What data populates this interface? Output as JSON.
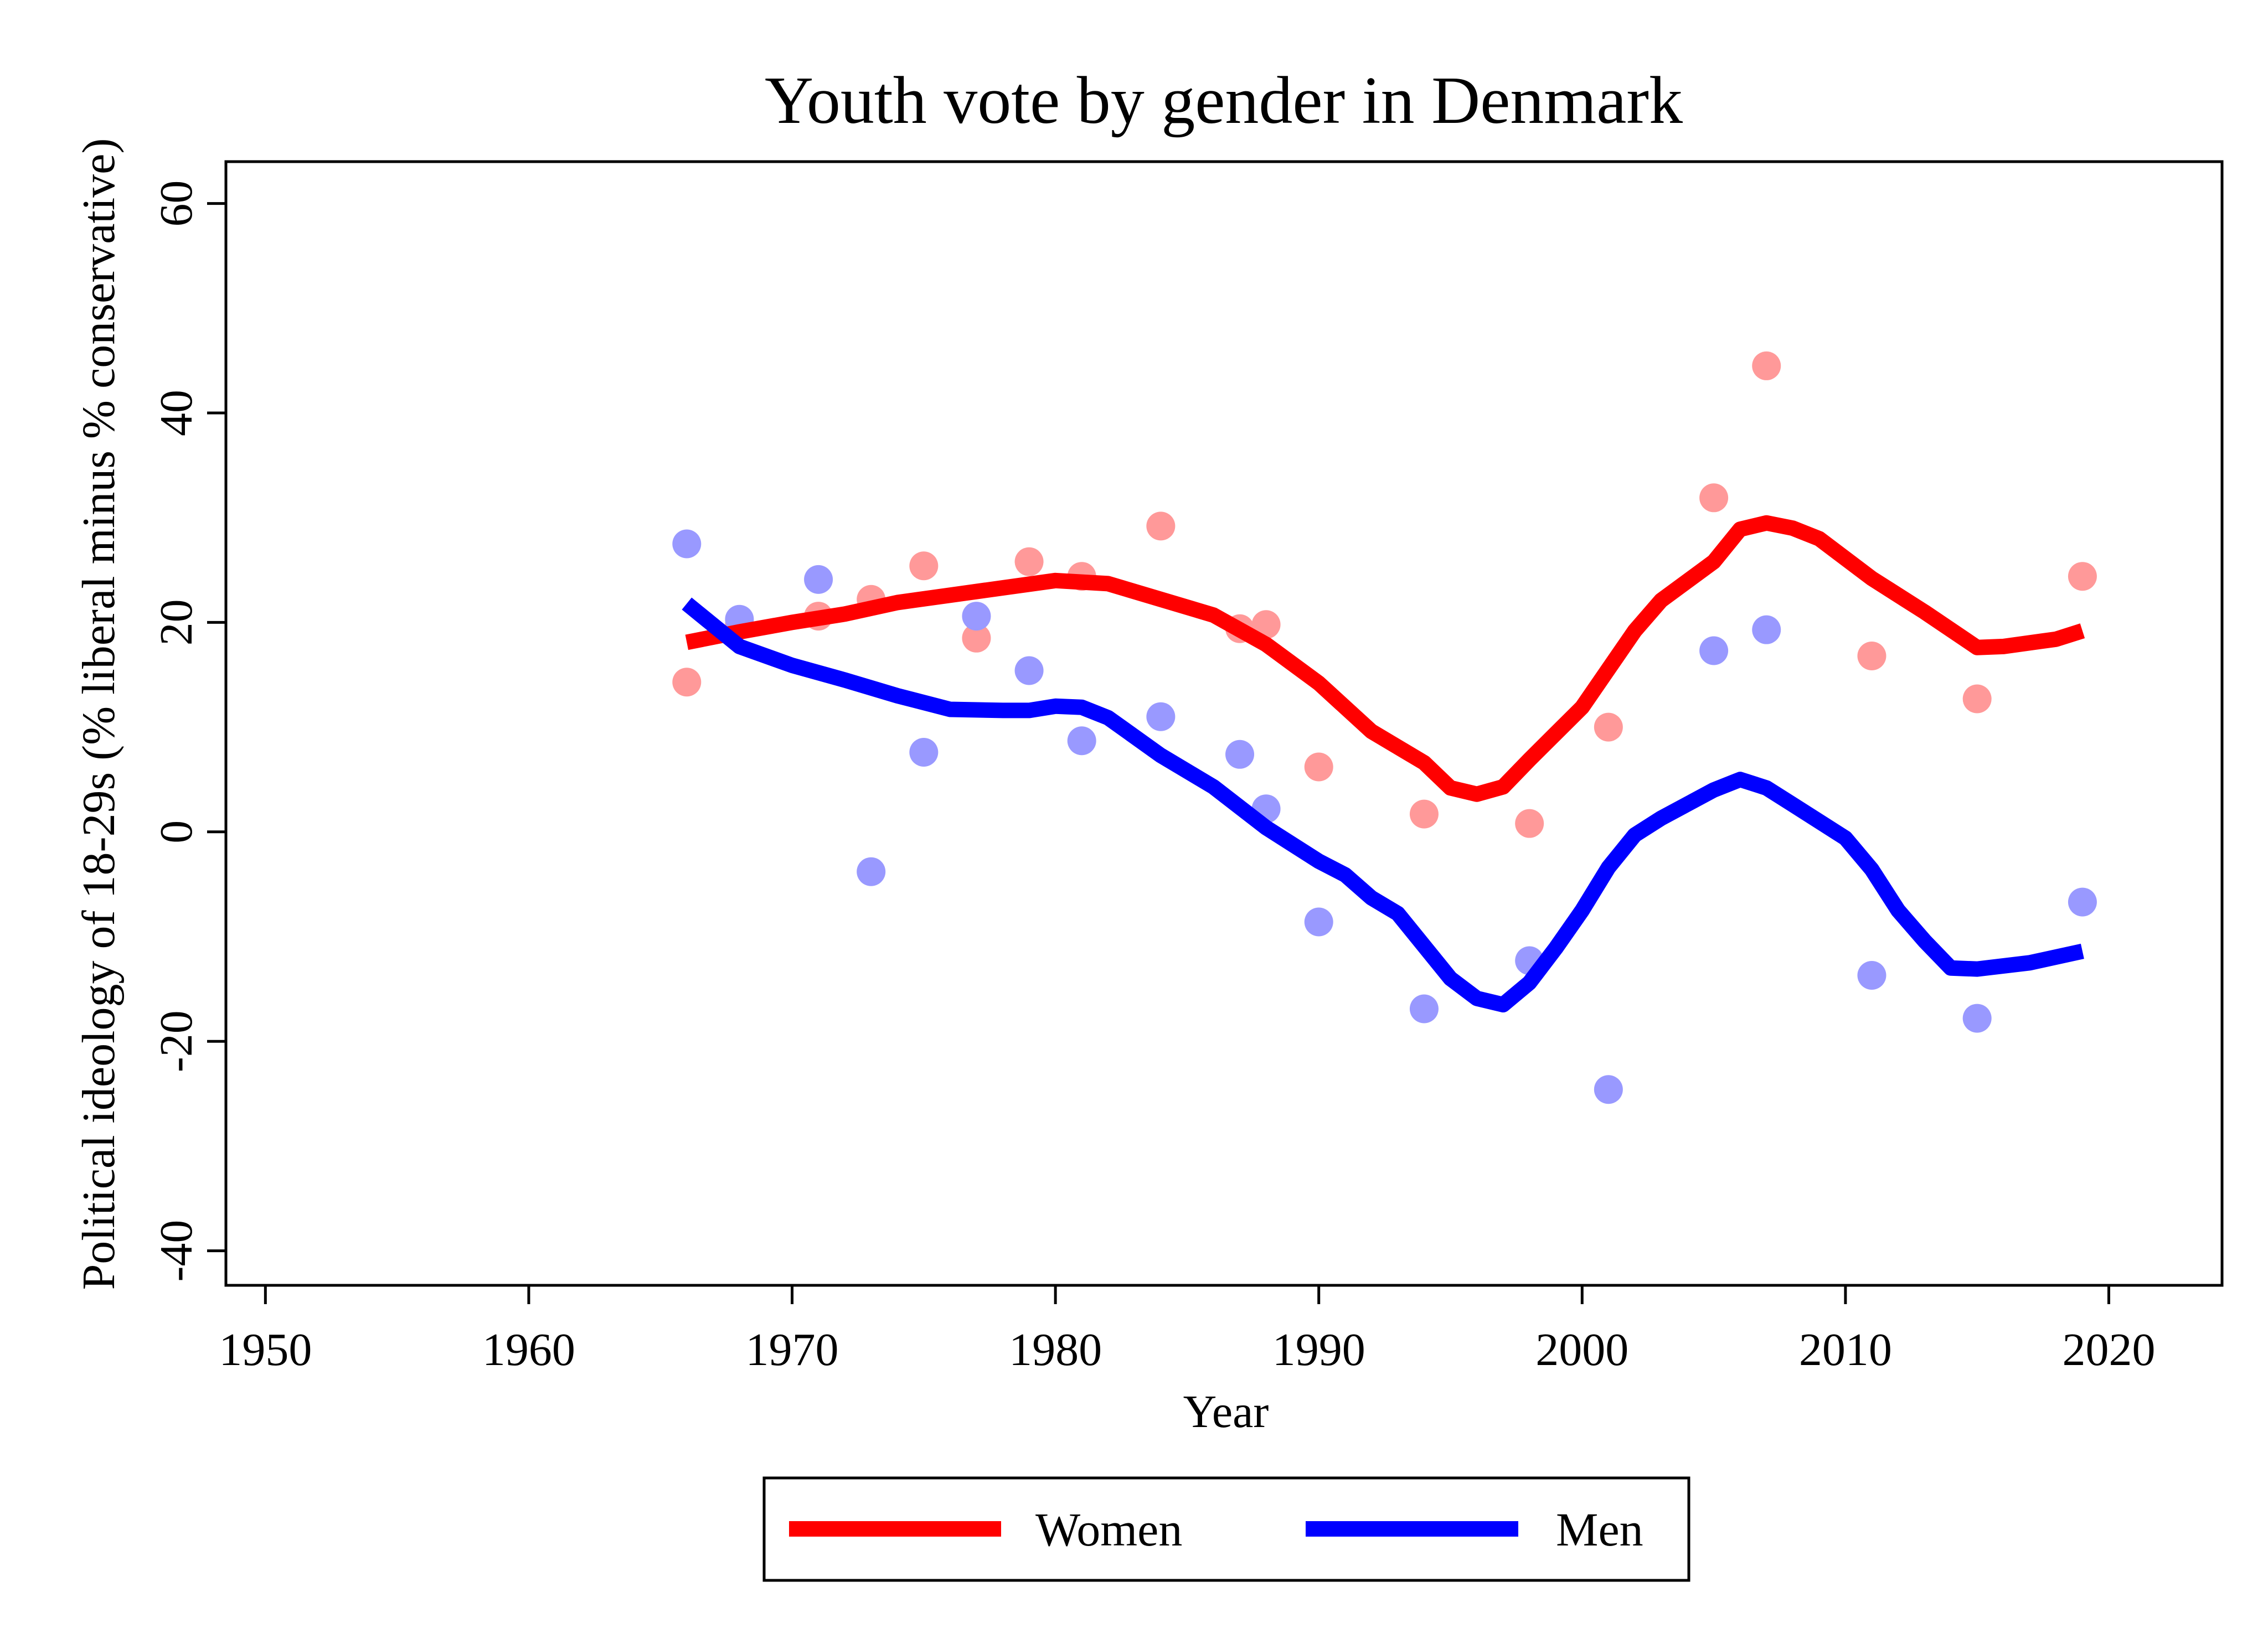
{
  "chart_data": {
    "type": "scatter",
    "title": "Youth vote by gender in Denmark",
    "xlabel": "Year",
    "ylabel": "Political ideology of 18-29s (% liberal minus % conservative)",
    "xlim": [
      1948.5,
      2024.3
    ],
    "ylim": [
      -43.3,
      64.0
    ],
    "xticks": [
      1950,
      1960,
      1970,
      1980,
      1990,
      2000,
      2010,
      2020
    ],
    "yticks": [
      -40,
      -20,
      0,
      20,
      40,
      60
    ],
    "grid": false,
    "legend": "bottom",
    "series": [
      {
        "name": "Women",
        "color": "#ff0000",
        "point_color": "#ff9999",
        "points": [
          [
            1966,
            14.3
          ],
          [
            1968,
            19.8
          ],
          [
            1971,
            20.6
          ],
          [
            1973,
            22.2
          ],
          [
            1975,
            25.4
          ],
          [
            1977,
            18.5
          ],
          [
            1979,
            25.8
          ],
          [
            1981,
            24.4
          ],
          [
            1984,
            29.2
          ],
          [
            1987,
            19.4
          ],
          [
            1988,
            19.8
          ],
          [
            1990,
            6.2
          ],
          [
            1994,
            1.7
          ],
          [
            1998,
            0.8
          ],
          [
            2001,
            10.0
          ],
          [
            2005,
            31.9
          ],
          [
            2007,
            44.5
          ],
          [
            2011,
            16.8
          ],
          [
            2015,
            12.7
          ],
          [
            2019,
            24.4
          ]
        ],
        "fit": [
          [
            1966,
            18.1
          ],
          [
            1968,
            19.1
          ],
          [
            1970,
            20.0
          ],
          [
            1972,
            20.8
          ],
          [
            1974,
            21.9
          ],
          [
            1976,
            22.6
          ],
          [
            1978,
            23.3
          ],
          [
            1980,
            24.0
          ],
          [
            1982,
            23.7
          ],
          [
            1984,
            22.2
          ],
          [
            1986,
            20.7
          ],
          [
            1988,
            17.9
          ],
          [
            1990,
            14.2
          ],
          [
            1992,
            9.6
          ],
          [
            1994,
            6.6
          ],
          [
            1995,
            4.2
          ],
          [
            1996,
            3.6
          ],
          [
            1997,
            4.3
          ],
          [
            1998,
            6.9
          ],
          [
            2000,
            11.9
          ],
          [
            2002,
            19.2
          ],
          [
            2003,
            22.1
          ],
          [
            2005,
            25.8
          ],
          [
            2006,
            28.9
          ],
          [
            2007,
            29.5
          ],
          [
            2008,
            29.0
          ],
          [
            2009,
            28.0
          ],
          [
            2011,
            24.2
          ],
          [
            2013,
            21.0
          ],
          [
            2015,
            17.6
          ],
          [
            2016,
            17.7
          ],
          [
            2018,
            18.4
          ],
          [
            2019,
            19.2
          ]
        ]
      },
      {
        "name": "Men",
        "color": "#0000ff",
        "point_color": "#9999ff",
        "points": [
          [
            1966,
            27.5
          ],
          [
            1968,
            20.3
          ],
          [
            1971,
            24.1
          ],
          [
            1973,
            -3.8
          ],
          [
            1975,
            7.6
          ],
          [
            1977,
            20.6
          ],
          [
            1979,
            15.4
          ],
          [
            1981,
            8.7
          ],
          [
            1984,
            11.0
          ],
          [
            1987,
            7.4
          ],
          [
            1988,
            2.2
          ],
          [
            1990,
            -8.6
          ],
          [
            1994,
            -16.9
          ],
          [
            1998,
            -12.3
          ],
          [
            2001,
            -24.6
          ],
          [
            2005,
            17.3
          ],
          [
            2007,
            19.3
          ],
          [
            2011,
            -13.7
          ],
          [
            2015,
            -17.8
          ],
          [
            2019,
            -6.7
          ]
        ],
        "fit": [
          [
            1966,
            21.8
          ],
          [
            1968,
            17.7
          ],
          [
            1970,
            15.9
          ],
          [
            1972,
            14.5
          ],
          [
            1974,
            13.0
          ],
          [
            1976,
            11.7
          ],
          [
            1978,
            11.6
          ],
          [
            1979,
            11.6
          ],
          [
            1980,
            12.0
          ],
          [
            1981,
            11.9
          ],
          [
            1982,
            10.9
          ],
          [
            1984,
            7.3
          ],
          [
            1986,
            4.3
          ],
          [
            1988,
            0.4
          ],
          [
            1990,
            -2.8
          ],
          [
            1991,
            -4.1
          ],
          [
            1992,
            -6.3
          ],
          [
            1993,
            -7.8
          ],
          [
            1995,
            -14.0
          ],
          [
            1996,
            -15.9
          ],
          [
            1997,
            -16.5
          ],
          [
            1998,
            -14.4
          ],
          [
            1999,
            -11.1
          ],
          [
            2000,
            -7.5
          ],
          [
            2001,
            -3.4
          ],
          [
            2002,
            -0.3
          ],
          [
            2003,
            1.3
          ],
          [
            2005,
            4.0
          ],
          [
            2006,
            5.0
          ],
          [
            2007,
            4.2
          ],
          [
            2008,
            2.6
          ],
          [
            2010,
            -0.6
          ],
          [
            2011,
            -3.6
          ],
          [
            2012,
            -7.5
          ],
          [
            2013,
            -10.4
          ],
          [
            2014,
            -13.0
          ],
          [
            2015,
            -13.1
          ],
          [
            2017,
            -12.5
          ],
          [
            2019,
            -11.4
          ]
        ]
      }
    ]
  }
}
